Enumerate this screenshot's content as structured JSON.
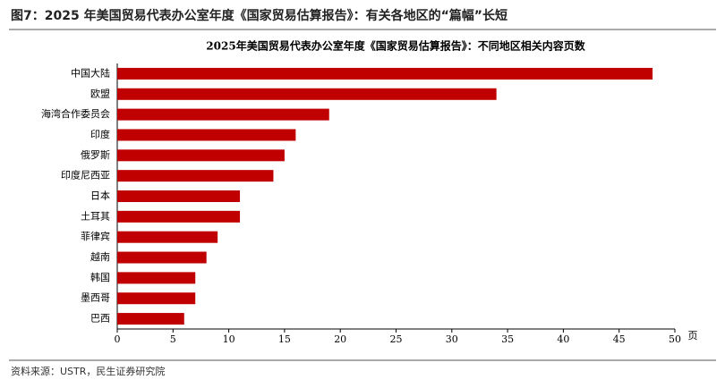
{
  "figure_title": "图7：2025 年美国贸易代表办公室年度《国家贸易估算报告》：有关各地区的“篇幅”长短",
  "source": "资料来源：USTR，民生证券研究院",
  "chart_data": {
    "type": "hbar",
    "title": "2025年美国贸易代表办公室年度《国家贸易估算报告》：不同地区相关内容页数",
    "x_label": "页",
    "categories": [
      "中国大陆",
      "欧盟",
      "海湾合作委员会",
      "印度",
      "俄罗斯",
      "印度尼西亚",
      "日本",
      "土耳其",
      "菲律宾",
      "越南",
      "韩国",
      "墨西哥",
      "巴西"
    ],
    "values": [
      48,
      34,
      19,
      16,
      15,
      14,
      11,
      11,
      9,
      8,
      7,
      7,
      6
    ],
    "color": "#c00000",
    "xlim": [
      0,
      50
    ],
    "xticks": [
      0,
      5,
      10,
      15,
      20,
      25,
      30,
      35,
      40,
      45,
      50
    ],
    "grid": false
  }
}
